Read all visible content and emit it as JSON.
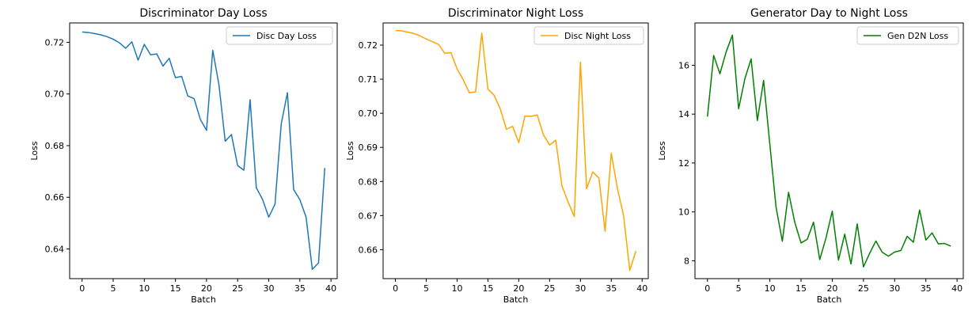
{
  "chart_data": [
    {
      "type": "line",
      "title": "Discriminator Day Loss",
      "xlabel": "Batch",
      "ylabel": "Loss",
      "xlim": [
        -2,
        41
      ],
      "ylim": [
        0.6285,
        0.7275
      ],
      "xticks": [
        0,
        5,
        10,
        15,
        20,
        25,
        30,
        35,
        40
      ],
      "yticks": [
        0.64,
        0.66,
        0.68,
        0.7,
        0.72
      ],
      "ytick_labels": [
        "0.64",
        "0.66",
        "0.68",
        "0.70",
        "0.72"
      ],
      "legend_position": "top-right",
      "grid": false,
      "x": [
        0,
        1,
        2,
        3,
        4,
        5,
        6,
        7,
        8,
        9,
        10,
        11,
        12,
        13,
        14,
        15,
        16,
        17,
        18,
        19,
        20,
        21,
        22,
        23,
        24,
        25,
        26,
        27,
        28,
        29,
        30,
        31,
        32,
        33,
        34,
        35,
        36,
        37,
        38,
        39
      ],
      "series": [
        {
          "name": "Disc Day Loss",
          "color": "#1f77b4",
          "values": [
            0.724,
            0.7238,
            0.7234,
            0.7229,
            0.7222,
            0.7212,
            0.7198,
            0.7177,
            0.7202,
            0.7131,
            0.7192,
            0.7152,
            0.7155,
            0.7108,
            0.7138,
            0.7063,
            0.7068,
            0.6992,
            0.6982,
            0.6902,
            0.6859,
            0.7169,
            0.7035,
            0.6817,
            0.6843,
            0.6723,
            0.6705,
            0.6978,
            0.6637,
            0.6592,
            0.6523,
            0.6573,
            0.6883,
            0.7005,
            0.663,
            0.6591,
            0.6523,
            0.6321,
            0.6346,
            0.6713
          ]
        }
      ]
    },
    {
      "type": "line",
      "title": "Discriminator Night Loss",
      "xlabel": "Batch",
      "ylabel": "Loss",
      "xlim": [
        -2,
        41
      ],
      "ylim": [
        0.6515,
        0.7265
      ],
      "xticks": [
        0,
        5,
        10,
        15,
        20,
        25,
        30,
        35,
        40
      ],
      "yticks": [
        0.66,
        0.67,
        0.68,
        0.69,
        0.7,
        0.71,
        0.72
      ],
      "ytick_labels": [
        "0.66",
        "0.67",
        "0.68",
        "0.69",
        "0.70",
        "0.71",
        "0.72"
      ],
      "legend_position": "top-right",
      "grid": false,
      "x": [
        0,
        1,
        2,
        3,
        4,
        5,
        6,
        7,
        8,
        9,
        10,
        11,
        12,
        13,
        14,
        15,
        16,
        17,
        18,
        19,
        20,
        21,
        22,
        23,
        24,
        25,
        26,
        27,
        28,
        29,
        30,
        31,
        32,
        33,
        34,
        35,
        36,
        37,
        38,
        39
      ],
      "series": [
        {
          "name": "Disc Night Loss",
          "color": "#ffa500",
          "values": [
            0.7243,
            0.7242,
            0.7238,
            0.7234,
            0.7227,
            0.7218,
            0.721,
            0.7202,
            0.7176,
            0.7178,
            0.713,
            0.7098,
            0.706,
            0.7063,
            0.7235,
            0.7071,
            0.7053,
            0.7013,
            0.6953,
            0.6962,
            0.6914,
            0.6992,
            0.6991,
            0.6995,
            0.6937,
            0.6907,
            0.6921,
            0.6787,
            0.674,
            0.6697,
            0.715,
            0.6779,
            0.6828,
            0.681,
            0.6654,
            0.6883,
            0.6779,
            0.67,
            0.6539,
            0.6596
          ]
        }
      ]
    },
    {
      "type": "line",
      "title": "Generator Day to Night Loss",
      "xlabel": "Batch",
      "ylabel": "Loss",
      "xlim": [
        -2,
        41
      ],
      "ylim": [
        7.27,
        17.73
      ],
      "xticks": [
        0,
        5,
        10,
        15,
        20,
        25,
        30,
        35,
        40
      ],
      "yticks": [
        8,
        10,
        12,
        14,
        16
      ],
      "ytick_labels": [
        "8",
        "10",
        "12",
        "14",
        "16"
      ],
      "legend_position": "top-right",
      "grid": false,
      "x": [
        0,
        1,
        2,
        3,
        4,
        5,
        6,
        7,
        8,
        9,
        10,
        11,
        12,
        13,
        14,
        15,
        16,
        17,
        18,
        19,
        20,
        21,
        22,
        23,
        24,
        25,
        26,
        27,
        28,
        29,
        30,
        31,
        32,
        33,
        34,
        35,
        36,
        37,
        38,
        39
      ],
      "series": [
        {
          "name": "Gen D2N Loss",
          "color": "#008000",
          "values": [
            13.9,
            16.4,
            15.65,
            16.55,
            17.23,
            14.22,
            15.45,
            16.26,
            13.74,
            15.38,
            12.76,
            10.18,
            8.8,
            10.8,
            9.57,
            8.73,
            8.88,
            9.58,
            8.05,
            8.94,
            10.03,
            8.03,
            9.09,
            7.87,
            9.51,
            7.75,
            8.31,
            8.81,
            8.35,
            8.19,
            8.36,
            8.42,
            9.0,
            8.76,
            10.08,
            8.85,
            9.14,
            8.69,
            8.71,
            8.6
          ]
        }
      ]
    }
  ]
}
